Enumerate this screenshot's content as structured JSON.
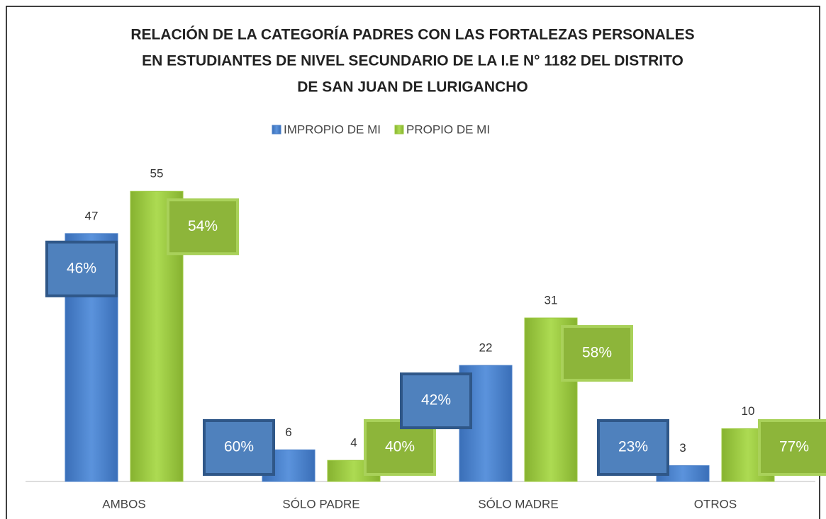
{
  "chart_data": {
    "type": "bar",
    "title": [
      "RELACIÓN DE LA CATEGORÍA PADRES CON LAS FORTALEZAS PERSONALES",
      "EN ESTUDIANTES DE NIVEL SECUNDARIO DE LA I.E N° 1182 DEL DISTRITO",
      "DE SAN JUAN DE LURIGANCHO"
    ],
    "categories": [
      "AMBOS",
      "SÓLO PADRE",
      "SÓLO MADRE",
      "OTROS"
    ],
    "series": [
      {
        "name": "IMPROPIO DE MI",
        "color": "#4a7fc8",
        "values": [
          47,
          6,
          22,
          3
        ],
        "percent_labels": [
          "46%",
          "60%",
          "42%",
          "23%"
        ]
      },
      {
        "name": "PROPIO DE MI",
        "color": "#9cc940",
        "values": [
          55,
          4,
          31,
          10
        ],
        "percent_labels": [
          "54%",
          "40%",
          "58%",
          "77%"
        ]
      }
    ],
    "ylim": [
      0,
      60
    ],
    "legend": "top"
  }
}
